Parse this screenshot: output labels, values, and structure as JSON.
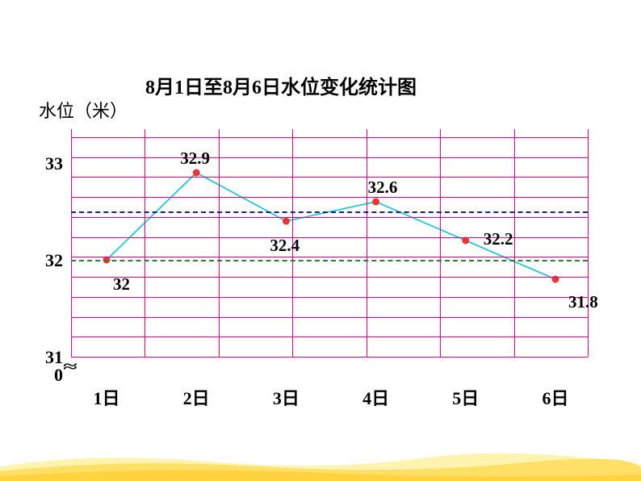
{
  "title": "8月1日至8月6日水位变化统计图",
  "ylabel": "水位（米）",
  "type": "line",
  "grid_color": "#e6007e",
  "line_color": "#26c6da",
  "point_color": "#e53935",
  "background_color": "#ffffff",
  "title_fontsize": 24,
  "label_fontsize": 22,
  "ylim": [
    31,
    33.4
  ],
  "y_axis_break_between": [
    0,
    31
  ],
  "yticks": [
    {
      "value": 0,
      "label": "0"
    },
    {
      "value": 31,
      "label": "31"
    },
    {
      "value": 32,
      "label": "32"
    },
    {
      "value": 33,
      "label": "33"
    }
  ],
  "xticks": [
    "1日",
    "2日",
    "3日",
    "4日",
    "5日",
    "6日"
  ],
  "reference_lines": [
    {
      "value": 32.5,
      "color": "#1a237e",
      "style": "dashed"
    },
    {
      "value": 32.0,
      "color": "#2e7d32",
      "style": "dashed"
    }
  ],
  "series": {
    "values": [
      32,
      32.9,
      32.4,
      32.6,
      32.2,
      31.8
    ],
    "labels": [
      "32",
      "32.9",
      "32.4",
      "32.6",
      "32.2",
      "31.8"
    ],
    "label_offsets": [
      {
        "dx": 8,
        "dy": 18
      },
      {
        "dx": -20,
        "dy": -30
      },
      {
        "dx": -20,
        "dy": 18
      },
      {
        "dx": -10,
        "dy": -30
      },
      {
        "dx": 22,
        "dy": -14
      },
      {
        "dx": 16,
        "dy": 16
      }
    ]
  },
  "marker_radius": 4,
  "line_width": 1.8
}
